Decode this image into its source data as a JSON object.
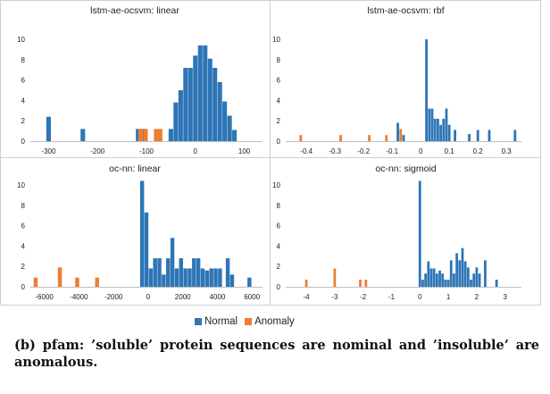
{
  "colors": {
    "normal": "#2e75b6",
    "anomaly": "#ed7d31"
  },
  "legend": {
    "normal_label": "Normal",
    "anomaly_label": "Anomaly"
  },
  "caption": "(b) pfam: ’soluble’ protein sequences are nominal and ’insoluble’ are anomalous.",
  "chart_data": [
    {
      "type": "bar",
      "title": "lstm-ae-ocsvm: linear",
      "xlim": [
        -330,
        130
      ],
      "ylim": [
        0,
        10
      ],
      "xticks": [
        {
          "v": -300,
          "t": "-300"
        },
        {
          "v": -200,
          "t": "-200"
        },
        {
          "v": -100,
          "t": "-100"
        },
        {
          "v": 0,
          "t": "0"
        },
        {
          "v": 100,
          "t": "100"
        }
      ],
      "yticks": [
        0,
        2,
        4,
        6,
        8,
        10
      ],
      "bin_width": 10,
      "series": [
        {
          "name": "Normal",
          "bins": [
            [
              -300,
              2.4
            ],
            [
              -230,
              1.2
            ],
            [
              -117,
              1.2
            ],
            [
              -107,
              1.2
            ],
            [
              -50,
              1.2
            ],
            [
              -40,
              3.8
            ],
            [
              -30,
              5
            ],
            [
              -20,
              7.2
            ],
            [
              -10,
              7.2
            ],
            [
              0,
              8.4
            ],
            [
              10,
              9.4
            ],
            [
              20,
              9.4
            ],
            [
              30,
              8.1
            ],
            [
              40,
              7.2
            ],
            [
              50,
              5.8
            ],
            [
              60,
              3.9
            ],
            [
              70,
              2.5
            ],
            [
              80,
              1.1
            ]
          ]
        },
        {
          "name": "Anomaly",
          "bins": [
            [
              -112,
              1.2
            ],
            [
              -102,
              1.2
            ],
            [
              -80,
              1.2
            ],
            [
              -72,
              1.2
            ]
          ]
        }
      ]
    },
    {
      "type": "bar",
      "title": "lstm-ae-ocsvm: rbf",
      "xlim": [
        -0.46,
        0.34
      ],
      "ylim": [
        0,
        10
      ],
      "xticks": [
        {
          "v": -0.4,
          "t": "-0.4"
        },
        {
          "v": -0.3,
          "t": "-0.3"
        },
        {
          "v": -0.2,
          "t": "-0.2"
        },
        {
          "v": -0.1,
          "t": "-0.1"
        },
        {
          "v": 0,
          "t": "0"
        },
        {
          "v": 0.1,
          "t": "0.1"
        },
        {
          "v": 0.2,
          "t": "0.2"
        },
        {
          "v": 0.3,
          "t": "0.3"
        }
      ],
      "yticks": [
        0,
        2,
        4,
        6,
        8,
        10
      ],
      "bin_width": 0.01,
      "series": [
        {
          "name": "Normal",
          "bins": [
            [
              -0.08,
              1.8
            ],
            [
              -0.06,
              0.6
            ],
            [
              0.02,
              10
            ],
            [
              0.03,
              3.2
            ],
            [
              0.04,
              3.2
            ],
            [
              0.05,
              2.2
            ],
            [
              0.06,
              2.2
            ],
            [
              0.07,
              1.6
            ],
            [
              0.08,
              2.2
            ],
            [
              0.09,
              3.2
            ],
            [
              0.1,
              1.6
            ],
            [
              0.12,
              1.1
            ],
            [
              0.17,
              0.7
            ],
            [
              0.2,
              1.1
            ],
            [
              0.24,
              1.1
            ],
            [
              0.33,
              1.1
            ]
          ]
        },
        {
          "name": "Anomaly",
          "bins": [
            [
              -0.42,
              0.6
            ],
            [
              -0.28,
              0.6
            ],
            [
              -0.18,
              0.6
            ],
            [
              -0.12,
              0.6
            ],
            [
              -0.07,
              1.2
            ]
          ]
        }
      ]
    },
    {
      "type": "bar",
      "title": "oc-nn: linear",
      "xlim": [
        -6600,
        6400
      ],
      "ylim": [
        0,
        10
      ],
      "xticks": [
        {
          "v": -6000,
          "t": "-6000"
        },
        {
          "v": -4000,
          "t": "-4000"
        },
        {
          "v": -2000,
          "t": "-2000"
        },
        {
          "v": 0,
          "t": "0"
        },
        {
          "v": 2000,
          "t": "2000"
        },
        {
          "v": 4000,
          "t": "4000"
        },
        {
          "v": 6000,
          "t": "6000"
        }
      ],
      "yticks": [
        0,
        2,
        4,
        6,
        8,
        10
      ],
      "bin_width": 250,
      "series": [
        {
          "name": "Normal",
          "bins": [
            [
              -350,
              10.4
            ],
            [
              -100,
              7.3
            ],
            [
              150,
              1.8
            ],
            [
              400,
              2.8
            ],
            [
              650,
              2.8
            ],
            [
              900,
              1.2
            ],
            [
              1150,
              2.8
            ],
            [
              1400,
              4.8
            ],
            [
              1650,
              1.8
            ],
            [
              1900,
              2.8
            ],
            [
              2150,
              1.8
            ],
            [
              2400,
              1.8
            ],
            [
              2650,
              2.8
            ],
            [
              2900,
              2.8
            ],
            [
              3150,
              1.8
            ],
            [
              3400,
              1.6
            ],
            [
              3650,
              1.8
            ],
            [
              3900,
              1.8
            ],
            [
              4150,
              1.8
            ],
            [
              4600,
              2.8
            ],
            [
              4850,
              1.2
            ],
            [
              5850,
              0.9
            ]
          ]
        },
        {
          "name": "Anomaly",
          "bins": [
            [
              -6500,
              0.9
            ],
            [
              -5100,
              1.9
            ],
            [
              -4100,
              0.9
            ],
            [
              -2950,
              0.9
            ]
          ]
        }
      ]
    },
    {
      "type": "bar",
      "title": "oc-nn: sigmoid",
      "xlim": [
        -4.6,
        3.45
      ],
      "ylim": [
        0,
        10
      ],
      "xticks": [
        {
          "v": -4,
          "t": "-4"
        },
        {
          "v": -3,
          "t": "-3"
        },
        {
          "v": -2,
          "t": "-2"
        },
        {
          "v": -1,
          "t": "-1"
        },
        {
          "v": 0,
          "t": "0"
        },
        {
          "v": 1,
          "t": "1"
        },
        {
          "v": 2,
          "t": "2"
        },
        {
          "v": 3,
          "t": "3"
        }
      ],
      "yticks": [
        0,
        2,
        4,
        6,
        8,
        10
      ],
      "bin_width": 0.1,
      "series": [
        {
          "name": "Normal",
          "bins": [
            [
              0,
              10.4
            ],
            [
              0.1,
              0.7
            ],
            [
              0.2,
              1.3
            ],
            [
              0.3,
              2.5
            ],
            [
              0.4,
              1.8
            ],
            [
              0.5,
              1.8
            ],
            [
              0.6,
              1.3
            ],
            [
              0.7,
              1.6
            ],
            [
              0.8,
              1.3
            ],
            [
              0.9,
              0.7
            ],
            [
              1.0,
              0.7
            ],
            [
              1.1,
              2.6
            ],
            [
              1.2,
              1.3
            ],
            [
              1.3,
              3.3
            ],
            [
              1.4,
              2.6
            ],
            [
              1.5,
              3.8
            ],
            [
              1.6,
              2.5
            ],
            [
              1.7,
              1.9
            ],
            [
              1.8,
              0.7
            ],
            [
              1.9,
              1.3
            ],
            [
              2.0,
              1.9
            ],
            [
              2.1,
              1.3
            ],
            [
              2.3,
              2.6
            ],
            [
              2.7,
              0.7
            ]
          ]
        },
        {
          "name": "Anomaly",
          "bins": [
            [
              -4.0,
              0.7
            ],
            [
              -3.0,
              1.8
            ],
            [
              -2.1,
              0.7
            ],
            [
              -1.9,
              0.7
            ]
          ]
        }
      ]
    }
  ]
}
